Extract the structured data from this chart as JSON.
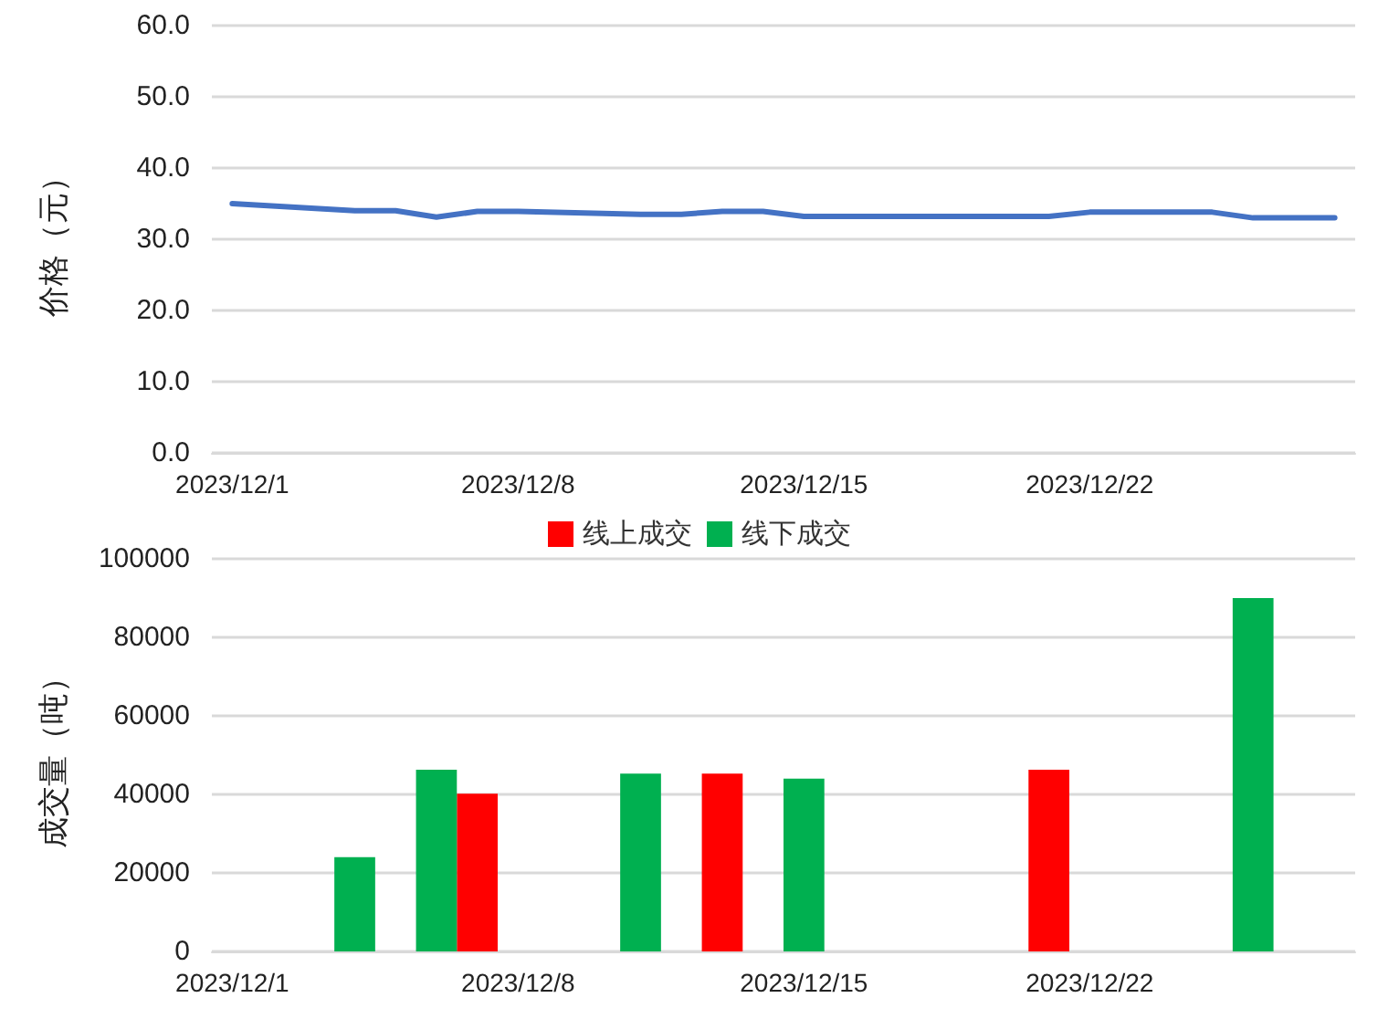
{
  "chart_data": [
    {
      "type": "line",
      "ylabel": "价格（元）",
      "categories": [
        "2023/12/1",
        null,
        null,
        null,
        null,
        null,
        null,
        "2023/12/8",
        null,
        null,
        null,
        null,
        null,
        null,
        "2023/12/15",
        null,
        null,
        null,
        null,
        null,
        null,
        "2023/12/22",
        null,
        null,
        null,
        null,
        null,
        null
      ],
      "series": [
        {
          "color": "#4472c4",
          "values": [
            35.0,
            null,
            null,
            34.0,
            34.0,
            33.1,
            33.9,
            33.9,
            null,
            null,
            33.5,
            33.5,
            33.9,
            33.9,
            33.2,
            null,
            null,
            33.2,
            33.2,
            33.2,
            33.2,
            33.8,
            null,
            null,
            33.8,
            33.0,
            33.0,
            33.0
          ]
        }
      ],
      "ylim": [
        0,
        60
      ],
      "yticks": [
        {
          "value": 0,
          "label": "0.0"
        },
        {
          "value": 10,
          "label": "10.0"
        },
        {
          "value": 20,
          "label": "20.0"
        },
        {
          "value": 30,
          "label": "30.0"
        },
        {
          "value": 40,
          "label": "40.0"
        },
        {
          "value": 50,
          "label": "50.0"
        },
        {
          "value": 60,
          "label": "60.0"
        }
      ],
      "grid": "y",
      "legend": false,
      "marker": "none",
      "line_style": "solid"
    },
    {
      "type": "bar",
      "ylabel": "成交量（吨）",
      "categories": [
        "2023/12/1",
        null,
        null,
        null,
        null,
        null,
        null,
        "2023/12/8",
        null,
        null,
        null,
        null,
        null,
        null,
        "2023/12/15",
        null,
        null,
        null,
        null,
        null,
        null,
        "2023/12/22",
        null,
        null,
        null,
        null,
        null,
        null
      ],
      "series": [
        {
          "name": "线上成交",
          "color": "#ff0000",
          "values": [
            null,
            null,
            null,
            null,
            null,
            null,
            40200,
            null,
            null,
            null,
            null,
            null,
            45300,
            null,
            null,
            null,
            null,
            null,
            null,
            null,
            46300,
            null,
            null,
            null,
            null,
            null,
            null,
            null
          ]
        },
        {
          "name": "线下成交",
          "color": "#00b050",
          "values": [
            null,
            null,
            null,
            24000,
            null,
            46300,
            null,
            null,
            null,
            null,
            45300,
            null,
            null,
            null,
            44000,
            null,
            null,
            null,
            null,
            null,
            null,
            null,
            null,
            null,
            null,
            90000,
            null,
            null
          ]
        }
      ],
      "ylim": [
        0,
        100000
      ],
      "yticks": [
        0,
        20000,
        40000,
        60000,
        80000,
        100000
      ],
      "grid": "y",
      "legend": "top"
    }
  ]
}
